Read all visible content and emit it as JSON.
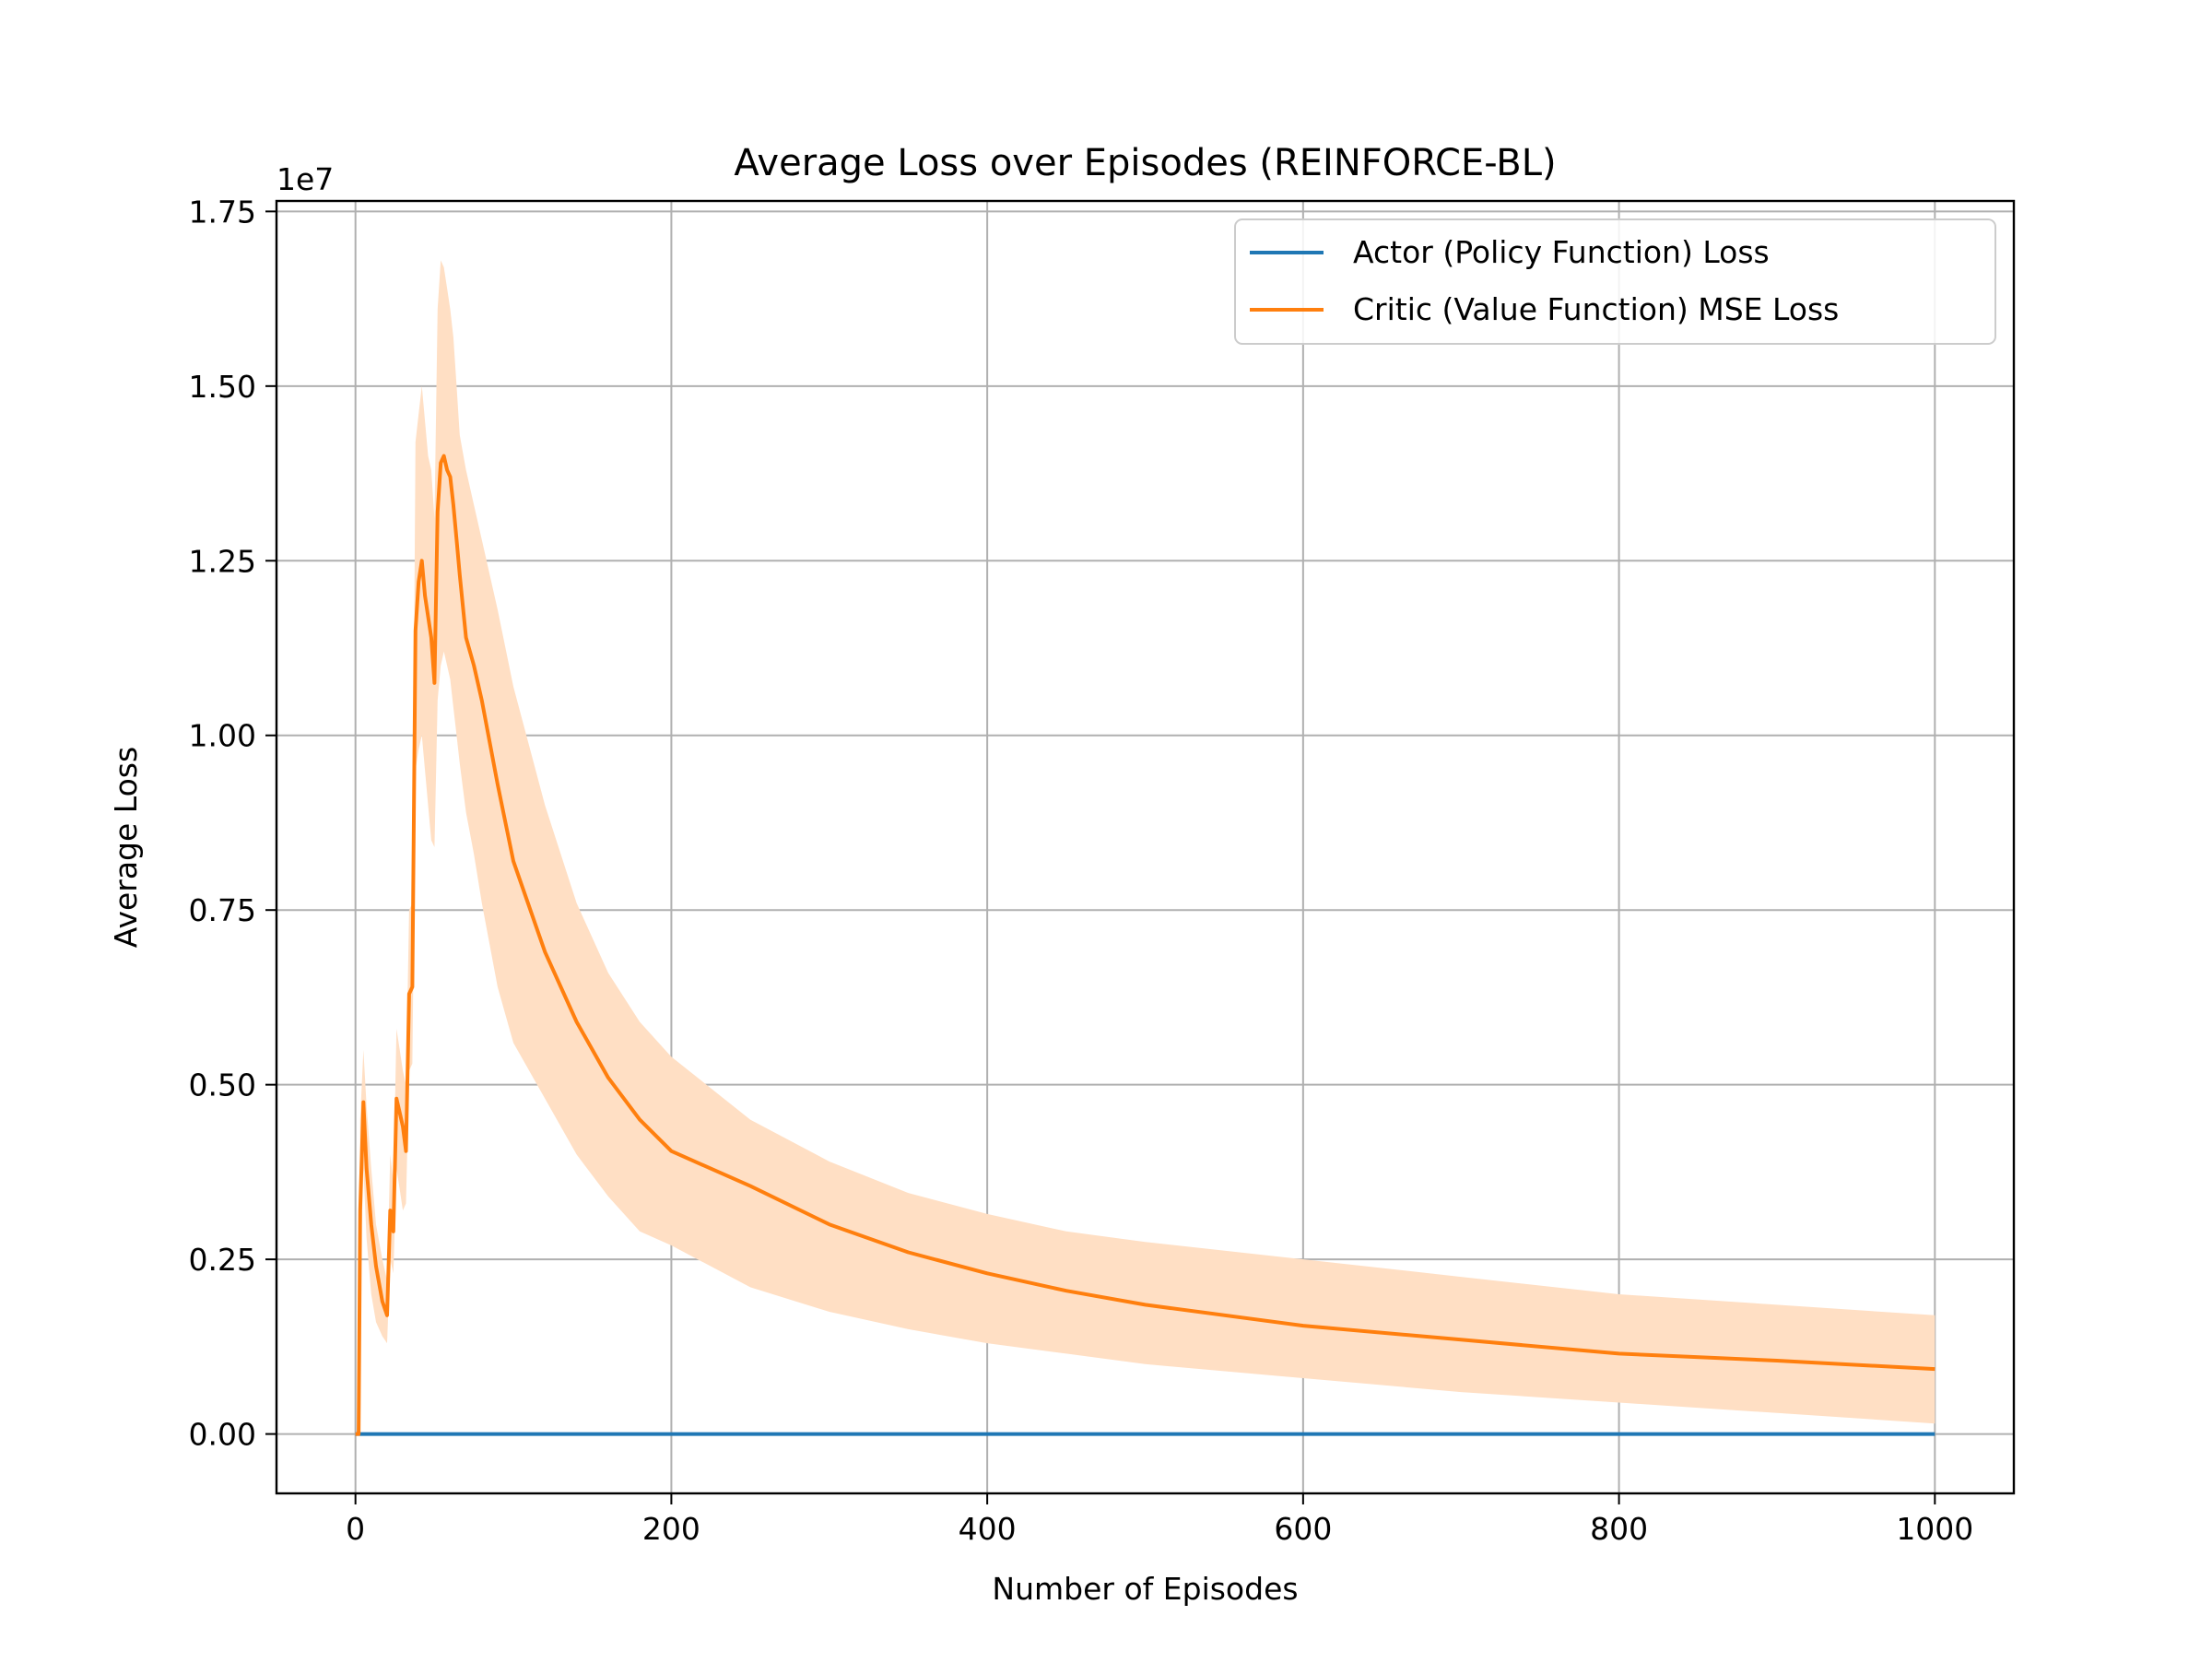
{
  "chart_data": {
    "type": "line",
    "title": "Average Loss over Episodes (REINFORCE-BL)",
    "xlabel": "Number of Episodes",
    "ylabel": "Average Loss",
    "y_offset_label": "1e7",
    "xlim": [
      -50,
      1050
    ],
    "ylim": [
      -850000,
      17650000
    ],
    "x_ticks": [
      0,
      200,
      400,
      600,
      800,
      1000
    ],
    "x_tick_labels": [
      "0",
      "200",
      "400",
      "600",
      "800",
      "1000"
    ],
    "y_ticks": [
      0,
      2500000,
      5000000,
      7500000,
      10000000,
      12500000,
      15000000,
      17500000
    ],
    "y_tick_labels": [
      "0.00",
      "0.25",
      "0.50",
      "0.75",
      "1.00",
      "1.25",
      "1.50",
      "1.75"
    ],
    "grid": true,
    "legend_position": "top-right",
    "series": [
      {
        "name": "Actor (Policy Function) Loss",
        "color": "#1f77b4",
        "x": [
          0,
          1000
        ],
        "y": [
          0,
          0
        ]
      },
      {
        "name": "Critic (Value Function) MSE Loss",
        "color": "#ff7f0e",
        "band_color": "#ffdfc4",
        "x": [
          0,
          2,
          3,
          5,
          7,
          10,
          13,
          17,
          20,
          22,
          24,
          26,
          28,
          30,
          32,
          34,
          36,
          38,
          40,
          42,
          44,
          46,
          48,
          50,
          52,
          54,
          56,
          58,
          60,
          62,
          64,
          66,
          70,
          75,
          80,
          90,
          100,
          120,
          140,
          160,
          180,
          200,
          250,
          300,
          350,
          400,
          450,
          500,
          600,
          700,
          800,
          900,
          1000
        ],
        "y": [
          0,
          0,
          3200000,
          4750000,
          3800000,
          3000000,
          2400000,
          1900000,
          1700000,
          3200000,
          2900000,
          4800000,
          4600000,
          4400000,
          4050000,
          6300000,
          6400000,
          11500000,
          12200000,
          12500000,
          12000000,
          11700000,
          11400000,
          10750000,
          13200000,
          13900000,
          14000000,
          13800000,
          13700000,
          13300000,
          12800000,
          12300000,
          11400000,
          11000000,
          10500000,
          9300000,
          8200000,
          6900000,
          5900000,
          5100000,
          4500000,
          4050000,
          3550000,
          3000000,
          2600000,
          2300000,
          2050000,
          1850000,
          1550000,
          1350000,
          1150000,
          1050000,
          930000
        ],
        "lower": [
          0,
          0,
          2200000,
          3800000,
          2800000,
          2000000,
          1600000,
          1400000,
          1300000,
          2500000,
          2300000,
          3800000,
          3500000,
          3200000,
          3300000,
          5200000,
          5300000,
          9500000,
          9800000,
          10000000,
          9500000,
          9000000,
          8500000,
          8400000,
          10500000,
          11000000,
          11200000,
          11000000,
          10800000,
          10400000,
          10000000,
          9600000,
          8900000,
          8300000,
          7600000,
          6400000,
          5600000,
          4800000,
          4000000,
          3400000,
          2900000,
          2700000,
          2100000,
          1750000,
          1500000,
          1300000,
          1150000,
          1000000,
          800000,
          600000,
          450000,
          300000,
          150000
        ],
        "upper": [
          0,
          0,
          4500000,
          5500000,
          4700000,
          3800000,
          3000000,
          2500000,
          2200000,
          4000000,
          3600000,
          5800000,
          5500000,
          5200000,
          5000000,
          7500000,
          7600000,
          14200000,
          14600000,
          15000000,
          14500000,
          14000000,
          13800000,
          13100000,
          16100000,
          16800000,
          16700000,
          16400000,
          16100000,
          15700000,
          15000000,
          14300000,
          13800000,
          13300000,
          12800000,
          11800000,
          10700000,
          9000000,
          7600000,
          6600000,
          5900000,
          5400000,
          4500000,
          3900000,
          3450000,
          3150000,
          2900000,
          2750000,
          2500000,
          2250000,
          2000000,
          1850000,
          1700000
        ]
      }
    ]
  }
}
